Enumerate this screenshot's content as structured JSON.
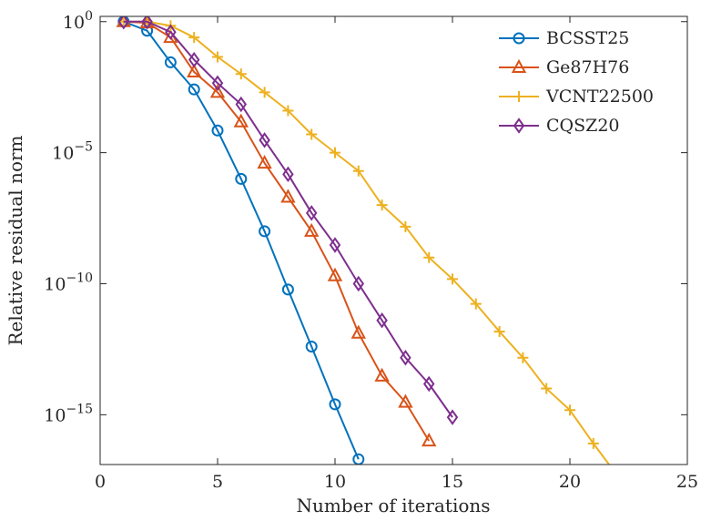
{
  "chart_data": {
    "type": "line",
    "xlabel": "Number of iterations",
    "ylabel": "Relative residual norm",
    "xlim": [
      0,
      25
    ],
    "ylim_log10": [
      -16.9,
      0.2
    ],
    "y_scale": "log",
    "grid": false,
    "legend_position": "top-right",
    "x_ticks": [
      {
        "value": 0,
        "label": "0"
      },
      {
        "value": 5,
        "label": "5"
      },
      {
        "value": 10,
        "label": "10"
      },
      {
        "value": 15,
        "label": "15"
      },
      {
        "value": 20,
        "label": "20"
      },
      {
        "value": 25,
        "label": "25"
      }
    ],
    "y_ticks": [
      {
        "exp": 0,
        "label": "10",
        "sup": "0"
      },
      {
        "exp": -5,
        "label": "10",
        "sup": "−5"
      },
      {
        "exp": -10,
        "label": "10",
        "sup": "−10"
      },
      {
        "exp": -15,
        "label": "10",
        "sup": "−15"
      }
    ],
    "series": [
      {
        "name": "BCSST25",
        "color": "#0072BD",
        "marker": "circle",
        "x": [
          1,
          2,
          3,
          4,
          5,
          6,
          7,
          8,
          9,
          10,
          11
        ],
        "y": [
          1.0,
          0.45,
          0.028,
          0.0026,
          7e-05,
          1e-06,
          1e-08,
          6e-11,
          4e-13,
          2.5e-15,
          2e-17
        ]
      },
      {
        "name": "Ge87H76",
        "color": "#D95319",
        "marker": "triangle",
        "x": [
          1,
          2,
          3,
          4,
          5,
          6,
          7,
          8,
          9,
          10,
          11,
          12,
          13,
          14
        ],
        "y": [
          1.0,
          0.9,
          0.25,
          0.012,
          0.002,
          0.00015,
          4e-06,
          2e-07,
          1e-08,
          2e-10,
          1.3e-12,
          3e-14,
          3e-15,
          1e-16
        ]
      },
      {
        "name": "VCNT22500",
        "color": "#EDB120",
        "marker": "plus",
        "x": [
          1,
          2,
          3,
          4,
          5,
          6,
          7,
          8,
          9,
          10,
          11,
          12,
          13,
          14,
          15,
          16,
          17,
          18,
          19,
          20,
          21,
          22,
          23
        ],
        "y": [
          1.0,
          1.0,
          0.7,
          0.25,
          0.045,
          0.01,
          0.002,
          0.0004,
          5e-05,
          1e-05,
          2e-06,
          1e-07,
          1.5e-08,
          1e-09,
          1.5e-10,
          1.7e-11,
          1.5e-12,
          1.5e-13,
          1e-14,
          1.5e-15,
          8e-17,
          5e-18,
          2.5e-19
        ]
      },
      {
        "name": "CQSZ20",
        "color": "#7E2F8E",
        "marker": "diamond",
        "x": [
          1,
          2,
          3,
          4,
          5,
          6,
          7,
          8,
          9,
          10,
          11,
          12,
          13,
          14,
          15
        ],
        "y": [
          1.0,
          1.0,
          0.4,
          0.035,
          0.0045,
          0.0007,
          3e-05,
          1.5e-06,
          5e-08,
          3e-09,
          1e-10,
          4e-12,
          1.5e-13,
          1.5e-14,
          8e-16
        ]
      }
    ]
  }
}
